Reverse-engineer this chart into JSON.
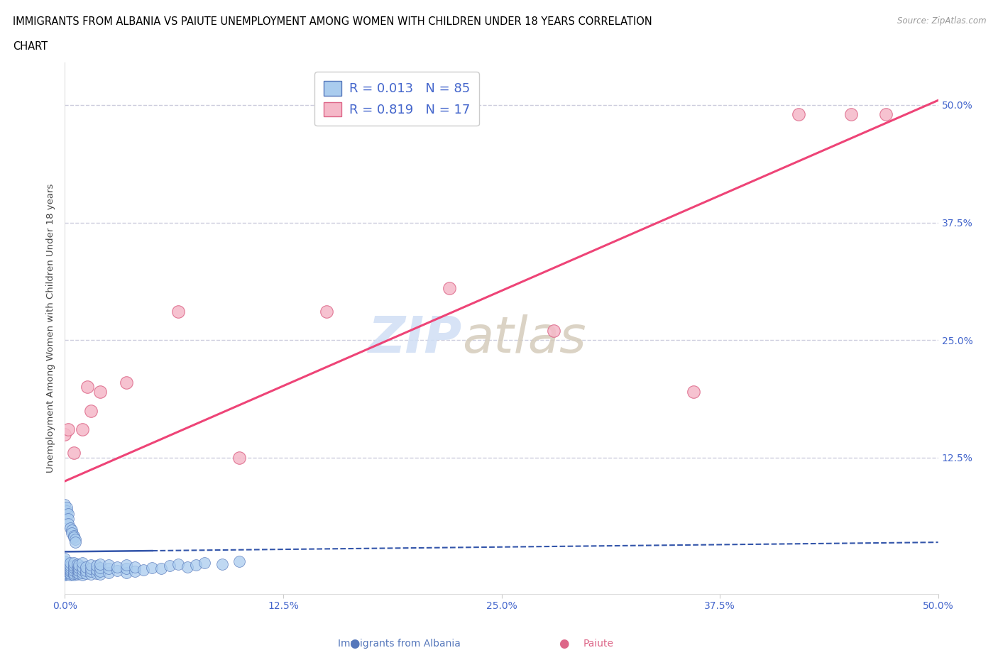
{
  "title_line1": "IMMIGRANTS FROM ALBANIA VS PAIUTE UNEMPLOYMENT AMONG WOMEN WITH CHILDREN UNDER 18 YEARS CORRELATION",
  "title_line2": "CHART",
  "source_text": "Source: ZipAtlas.com",
  "ylabel": "Unemployment Among Women with Children Under 18 years",
  "xlim": [
    0,
    0.5
  ],
  "ylim": [
    -0.02,
    0.545
  ],
  "xtick_labels": [
    "0.0%",
    "12.5%",
    "25.0%",
    "37.5%",
    "50.0%"
  ],
  "xtick_vals": [
    0.0,
    0.125,
    0.25,
    0.375,
    0.5
  ],
  "ytick_labels_right": [
    "50.0%",
    "37.5%",
    "25.0%",
    "12.5%"
  ],
  "ytick_vals_right": [
    0.5,
    0.375,
    0.25,
    0.125
  ],
  "R_albania": 0.013,
  "N_albania": 85,
  "R_paiute": 0.819,
  "N_paiute": 17,
  "albania_scatter_color": "#aaccee",
  "paiute_scatter_color": "#f5b8c8",
  "albania_edge_color": "#5577bb",
  "paiute_edge_color": "#dd6688",
  "albania_line_color": "#3355aa",
  "paiute_line_color": "#ee4477",
  "tick_color": "#4466cc",
  "background_color": "#ffffff",
  "grid_color": "#ccccdd",
  "watermark_zip_color": "#d0dff5",
  "watermark_atlas_color": "#d5ccbb",
  "albania_x": [
    0.0,
    0.0,
    0.0,
    0.0,
    0.0,
    0.0,
    0.0,
    0.0,
    0.0,
    0.0,
    0.003,
    0.003,
    0.003,
    0.003,
    0.003,
    0.003,
    0.003,
    0.005,
    0.005,
    0.005,
    0.005,
    0.005,
    0.005,
    0.007,
    0.007,
    0.007,
    0.007,
    0.007,
    0.008,
    0.008,
    0.008,
    0.008,
    0.01,
    0.01,
    0.01,
    0.01,
    0.01,
    0.012,
    0.012,
    0.012,
    0.015,
    0.015,
    0.015,
    0.015,
    0.018,
    0.018,
    0.018,
    0.02,
    0.02,
    0.02,
    0.02,
    0.025,
    0.025,
    0.025,
    0.03,
    0.03,
    0.035,
    0.035,
    0.035,
    0.04,
    0.04,
    0.045,
    0.05,
    0.055,
    0.06,
    0.065,
    0.07,
    0.075,
    0.08,
    0.09,
    0.1,
    0.0,
    0.0,
    0.001,
    0.001,
    0.002,
    0.002,
    0.002,
    0.003,
    0.004,
    0.004,
    0.005,
    0.005,
    0.006,
    0.006
  ],
  "albania_y": [
    0.0,
    0.0,
    0.002,
    0.003,
    0.005,
    0.007,
    0.009,
    0.012,
    0.015,
    0.018,
    0.0,
    0.002,
    0.004,
    0.006,
    0.008,
    0.01,
    0.013,
    0.0,
    0.002,
    0.005,
    0.008,
    0.01,
    0.013,
    0.001,
    0.003,
    0.006,
    0.009,
    0.012,
    0.002,
    0.005,
    0.008,
    0.011,
    0.0,
    0.003,
    0.006,
    0.009,
    0.013,
    0.002,
    0.005,
    0.009,
    0.001,
    0.004,
    0.007,
    0.011,
    0.002,
    0.006,
    0.01,
    0.001,
    0.004,
    0.008,
    0.012,
    0.003,
    0.007,
    0.011,
    0.005,
    0.009,
    0.003,
    0.007,
    0.011,
    0.004,
    0.009,
    0.006,
    0.008,
    0.007,
    0.01,
    0.012,
    0.009,
    0.011,
    0.013,
    0.012,
    0.015,
    0.07,
    0.075,
    0.068,
    0.072,
    0.065,
    0.06,
    0.055,
    0.05,
    0.048,
    0.045,
    0.042,
    0.04,
    0.038,
    0.035
  ],
  "paiute_x": [
    0.0,
    0.002,
    0.005,
    0.01,
    0.013,
    0.015,
    0.02,
    0.035,
    0.065,
    0.1,
    0.15,
    0.22,
    0.28,
    0.36,
    0.42,
    0.45,
    0.47
  ],
  "paiute_y": [
    0.15,
    0.155,
    0.13,
    0.155,
    0.2,
    0.175,
    0.195,
    0.205,
    0.28,
    0.125,
    0.28,
    0.305,
    0.26,
    0.195,
    0.49,
    0.49,
    0.49
  ],
  "albania_trend_x": [
    0.0,
    0.5
  ],
  "albania_trend_y": [
    0.025,
    0.035
  ],
  "paiute_trend_x": [
    0.0,
    0.5
  ],
  "paiute_trend_y": [
    0.1,
    0.505
  ]
}
